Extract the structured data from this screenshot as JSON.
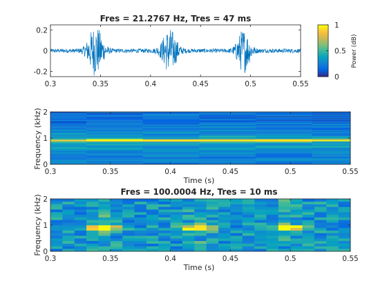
{
  "chart_data": [
    {
      "type": "line",
      "title": "Fres = 21.2767 Hz, Tres = 47 ms",
      "xlabel": "",
      "ylabel": "",
      "xlim": [
        0.3,
        0.55
      ],
      "ylim": [
        -0.25,
        0.25
      ],
      "xticks": [
        "0.3",
        "0.35",
        "0.4",
        "0.45",
        "0.5",
        "0.55"
      ],
      "yticks": [
        "-0.2",
        "0",
        "0.2"
      ],
      "line_color": "#0072BD",
      "series": [
        {
          "bursts": [
            {
              "center": 0.345,
              "peak": 0.23,
              "width": 0.008
            },
            {
              "center": 0.419,
              "peak": 0.2,
              "width": 0.008
            },
            {
              "center": 0.493,
              "peak": 0.2,
              "width": 0.007
            }
          ],
          "noise_level": 0.02
        }
      ],
      "colorbar": {
        "label": "Power (dB)",
        "ticks": [
          "0",
          "0.5",
          "1"
        ],
        "colormap": "parula"
      }
    },
    {
      "type": "heatmap",
      "title": "",
      "xlabel": "Time (s)",
      "ylabel": "Frequency (kHz)",
      "xlim": [
        0.3,
        0.55
      ],
      "ylim": [
        0,
        2
      ],
      "xticks": [
        "0.3",
        "0.35",
        "0.4",
        "0.45",
        "0.5",
        "0.55"
      ],
      "yticks": [
        "0",
        "1",
        "2"
      ],
      "time_edges": [
        0.3,
        0.33,
        0.377,
        0.424,
        0.471,
        0.518,
        0.55
      ],
      "tone_freq_khz": 0.92,
      "tone_intensity": [
        0.55,
        1.0,
        0.8,
        0.8,
        1.0,
        0.6
      ]
    },
    {
      "type": "heatmap",
      "title": "Fres = 100.0004 Hz, Tres = 10 ms",
      "xlabel": "Time (s)",
      "ylabel": "Frequency (kHz)",
      "xlim": [
        0.3,
        0.55
      ],
      "ylim": [
        0,
        2
      ],
      "xticks": [
        "0.3",
        "0.35",
        "0.4",
        "0.45",
        "0.5",
        "0.55"
      ],
      "yticks": [
        "0",
        "1",
        "2"
      ],
      "tone_freq_khz": 0.9,
      "hot_spots": [
        {
          "center": 0.345,
          "width": 0.012,
          "peak": 1.0
        },
        {
          "center": 0.422,
          "width": 0.012,
          "peak": 0.95
        },
        {
          "center": 0.497,
          "width": 0.012,
          "peak": 0.95
        }
      ]
    }
  ]
}
